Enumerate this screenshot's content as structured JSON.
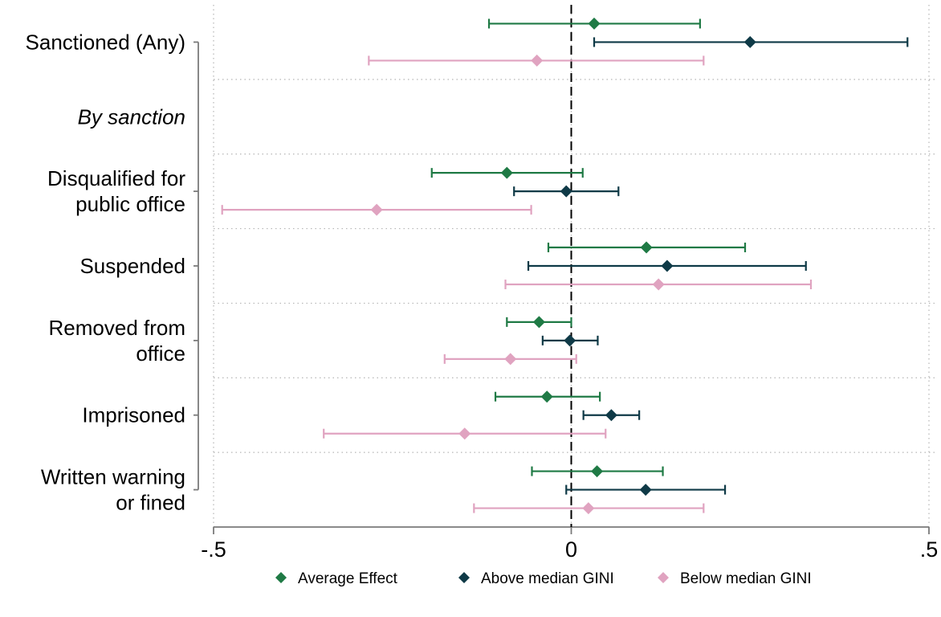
{
  "chart_data": {
    "type": "coefficient-plot",
    "orientation": "horizontal",
    "xlim": [
      -0.5,
      0.5
    ],
    "x_ticks": [
      {
        "value": -0.5,
        "label": "-.5"
      },
      {
        "value": 0,
        "label": "0"
      },
      {
        "value": 0.5,
        "label": ".5"
      }
    ],
    "reference_line": {
      "x": 0,
      "style": "dashed"
    },
    "grid": {
      "horizontal": "dotted",
      "vertical": "dotted"
    },
    "legend_position": "bottom",
    "series": [
      {
        "key": "average",
        "name": "Average Effect",
        "color": "#1f7a45"
      },
      {
        "key": "above",
        "name": "Above median GINI",
        "color": "#0f3a47"
      },
      {
        "key": "below",
        "name": "Below median GINI",
        "color": "#e0a3c0"
      }
    ],
    "rows": [
      {
        "label": [
          "Sanctioned (Any)"
        ],
        "italic": false,
        "estimates": {
          "average": {
            "est": 0.032,
            "lo": -0.115,
            "hi": 0.18
          },
          "above": {
            "est": 0.25,
            "lo": 0.032,
            "hi": 0.47
          },
          "below": {
            "est": -0.048,
            "lo": -0.283,
            "hi": 0.185
          }
        }
      },
      {
        "label": [
          "By sanction"
        ],
        "italic": true,
        "estimates": null
      },
      {
        "label": [
          "Disqualified for",
          "public office"
        ],
        "italic": false,
        "estimates": {
          "average": {
            "est": -0.09,
            "lo": -0.195,
            "hi": 0.016
          },
          "above": {
            "est": -0.007,
            "lo": -0.08,
            "hi": 0.066
          },
          "below": {
            "est": -0.272,
            "lo": -0.488,
            "hi": -0.056
          }
        }
      },
      {
        "label": [
          "Suspended"
        ],
        "italic": false,
        "estimates": {
          "average": {
            "est": 0.105,
            "lo": -0.032,
            "hi": 0.243
          },
          "above": {
            "est": 0.134,
            "lo": -0.06,
            "hi": 0.328
          },
          "below": {
            "est": 0.122,
            "lo": -0.092,
            "hi": 0.335
          }
        }
      },
      {
        "label": [
          "Removed from",
          "office"
        ],
        "italic": false,
        "estimates": {
          "average": {
            "est": -0.045,
            "lo": -0.09,
            "hi": 0.0
          },
          "above": {
            "est": -0.002,
            "lo": -0.04,
            "hi": 0.037
          },
          "below": {
            "est": -0.085,
            "lo": -0.177,
            "hi": 0.007
          }
        }
      },
      {
        "label": [
          "Imprisoned"
        ],
        "italic": false,
        "estimates": {
          "average": {
            "est": -0.034,
            "lo": -0.106,
            "hi": 0.04
          },
          "above": {
            "est": 0.056,
            "lo": 0.017,
            "hi": 0.095
          },
          "below": {
            "est": -0.149,
            "lo": -0.346,
            "hi": 0.048
          }
        }
      },
      {
        "label": [
          "Written warning",
          "or fined"
        ],
        "italic": false,
        "estimates": {
          "average": {
            "est": 0.036,
            "lo": -0.055,
            "hi": 0.128
          },
          "above": {
            "est": 0.104,
            "lo": -0.007,
            "hi": 0.215
          },
          "below": {
            "est": 0.024,
            "lo": -0.136,
            "hi": 0.185
          }
        }
      }
    ]
  }
}
